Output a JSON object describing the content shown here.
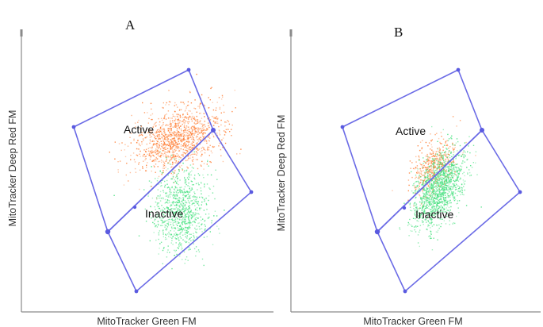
{
  "chart_data": [
    {
      "type": "scatter",
      "panel": "A",
      "xlabel": "MitoTracker Green FM",
      "ylabel": "MitoTracker Deep Red FM",
      "gates": [
        {
          "name": "Active",
          "color": "#6b6be6"
        },
        {
          "name": "Inactive",
          "color": "#6b6be6"
        }
      ],
      "series": [
        {
          "name": "Active",
          "color": "#ff7a2e",
          "center": [
            0.62,
            0.62
          ],
          "spread": [
            0.09,
            0.055
          ],
          "count": 1200
        },
        {
          "name": "Inactive",
          "color": "#3fe07a",
          "center": [
            0.63,
            0.36
          ],
          "spread": [
            0.055,
            0.075
          ],
          "count": 900
        }
      ]
    },
    {
      "type": "scatter",
      "panel": "B",
      "xlabel": "MitoTracker Green FM",
      "ylabel": "MitoTracker Deep Red FM",
      "gates": [
        {
          "name": "Active",
          "color": "#6b6be6"
        },
        {
          "name": "Inactive",
          "color": "#6b6be6"
        }
      ],
      "series": [
        {
          "name": "Active",
          "color": "#ff7a2e",
          "center": [
            0.57,
            0.52
          ],
          "spread": [
            0.04,
            0.05
          ],
          "count": 450
        },
        {
          "name": "Inactive",
          "color": "#3fe07a",
          "center": [
            0.59,
            0.44
          ],
          "spread": [
            0.045,
            0.07
          ],
          "count": 1300
        }
      ]
    }
  ]
}
